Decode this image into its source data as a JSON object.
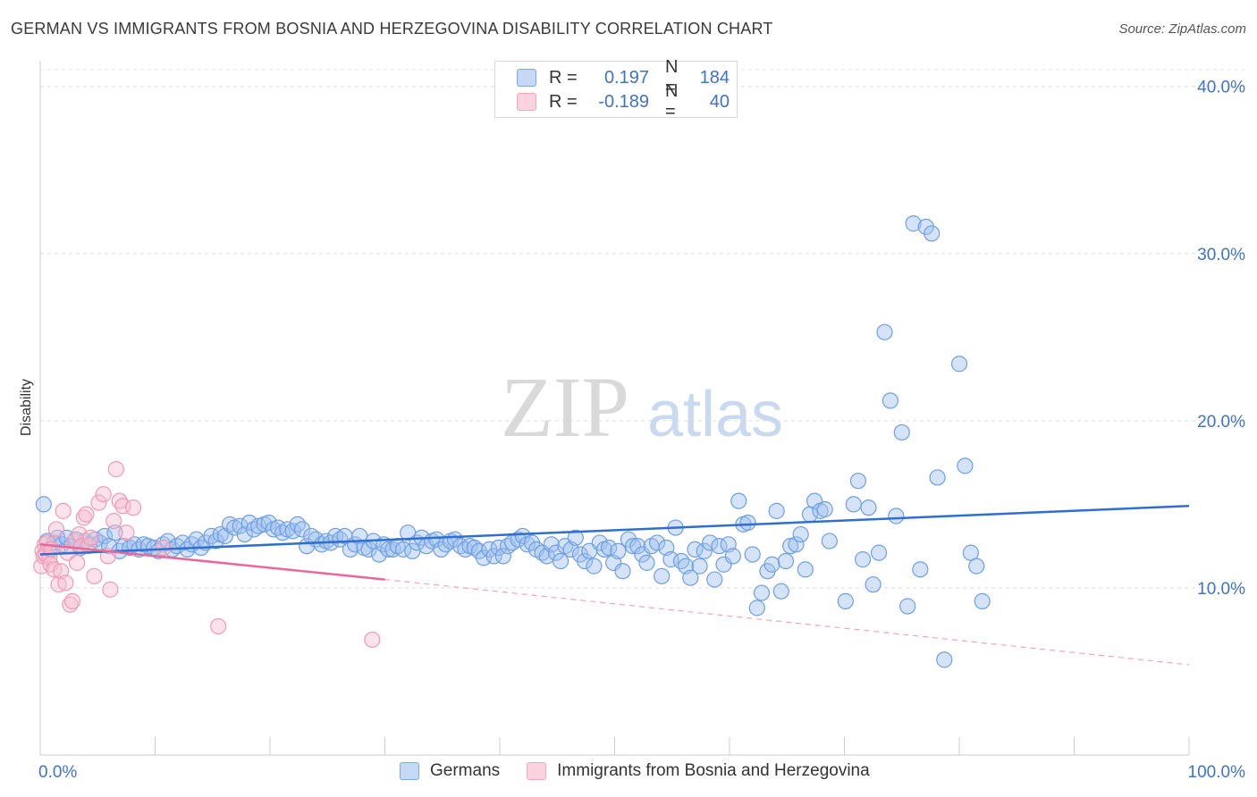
{
  "title": "GERMAN VS IMMIGRANTS FROM BOSNIA AND HERZEGOVINA DISABILITY CORRELATION CHART",
  "source": "Source: ZipAtlas.com",
  "watermark": {
    "zip": "ZIP",
    "atlas": "atlas"
  },
  "legend_top": [
    {
      "r_label": "R =",
      "r_value": "0.197",
      "n_label": "N =",
      "n_value": "184",
      "color": "#7fa9e6"
    },
    {
      "r_label": "R =",
      "r_value": "-0.189",
      "n_label": "N =",
      "n_value": "40",
      "color": "#f2a7bd"
    }
  ],
  "chart_data": {
    "type": "scatter",
    "title": "GERMAN VS IMMIGRANTS FROM BOSNIA AND HERZEGOVINA DISABILITY CORRELATION CHART",
    "xlabel": "",
    "ylabel": "Disability",
    "xlim": [
      0,
      100
    ],
    "ylim": [
      0,
      41
    ],
    "x_tick_labels": [
      "0.0%",
      "100.0%"
    ],
    "y_ticks": [
      10,
      20,
      30,
      40
    ],
    "y_tick_labels": [
      "10.0%",
      "20.0%",
      "30.0%",
      "40.0%"
    ],
    "grid": true,
    "legend_position": "bottom",
    "series": [
      {
        "name": "Germans",
        "color": "#7fa9e6",
        "trend": {
          "x": [
            0,
            100
          ],
          "y": [
            12.0,
            14.9
          ]
        },
        "points": [
          [
            0.3,
            15.0
          ],
          [
            0.6,
            12.8
          ],
          [
            0.8,
            12.3
          ],
          [
            1.2,
            12.7
          ],
          [
            1.5,
            13.0
          ],
          [
            1.9,
            12.6
          ],
          [
            2.3,
            13.0
          ],
          [
            2.7,
            12.5
          ],
          [
            3.1,
            12.9
          ],
          [
            3.5,
            12.4
          ],
          [
            3.9,
            12.8
          ],
          [
            4.3,
            12.6
          ],
          [
            4.8,
            12.9
          ],
          [
            5.2,
            12.7
          ],
          [
            5.6,
            13.1
          ],
          [
            6.0,
            12.5
          ],
          [
            6.5,
            13.3
          ],
          [
            6.9,
            12.2
          ],
          [
            7.3,
            12.5
          ],
          [
            7.8,
            12.4
          ],
          [
            8.2,
            12.6
          ],
          [
            8.6,
            12.3
          ],
          [
            9.0,
            12.6
          ],
          [
            9.4,
            12.5
          ],
          [
            9.9,
            12.4
          ],
          [
            10.3,
            12.2
          ],
          [
            10.7,
            12.6
          ],
          [
            11.1,
            12.8
          ],
          [
            11.5,
            12.3
          ],
          [
            11.9,
            12.5
          ],
          [
            12.4,
            12.7
          ],
          [
            12.8,
            12.3
          ],
          [
            13.2,
            12.6
          ],
          [
            13.6,
            12.9
          ],
          [
            14.0,
            12.4
          ],
          [
            14.4,
            12.7
          ],
          [
            14.9,
            13.1
          ],
          [
            15.3,
            12.8
          ],
          [
            15.7,
            13.2
          ],
          [
            16.1,
            13.1
          ],
          [
            16.5,
            13.8
          ],
          [
            16.9,
            13.6
          ],
          [
            17.4,
            13.7
          ],
          [
            17.8,
            13.2
          ],
          [
            18.2,
            13.9
          ],
          [
            18.6,
            13.5
          ],
          [
            19.0,
            13.7
          ],
          [
            19.5,
            13.8
          ],
          [
            19.9,
            13.9
          ],
          [
            20.3,
            13.5
          ],
          [
            20.7,
            13.6
          ],
          [
            21.1,
            13.3
          ],
          [
            21.5,
            13.5
          ],
          [
            22.0,
            13.4
          ],
          [
            22.4,
            13.8
          ],
          [
            22.8,
            13.5
          ],
          [
            23.2,
            12.5
          ],
          [
            23.6,
            13.1
          ],
          [
            24.0,
            12.9
          ],
          [
            24.5,
            12.6
          ],
          [
            24.9,
            12.8
          ],
          [
            25.3,
            12.7
          ],
          [
            25.7,
            13.1
          ],
          [
            26.1,
            12.9
          ],
          [
            26.5,
            13.1
          ],
          [
            27.0,
            12.3
          ],
          [
            27.4,
            12.6
          ],
          [
            27.8,
            13.1
          ],
          [
            28.2,
            12.4
          ],
          [
            28.6,
            12.3
          ],
          [
            29.0,
            12.8
          ],
          [
            29.5,
            12.0
          ],
          [
            29.9,
            12.6
          ],
          [
            30.3,
            12.3
          ],
          [
            30.7,
            12.3
          ],
          [
            31.1,
            12.5
          ],
          [
            31.6,
            12.3
          ],
          [
            32.0,
            13.3
          ],
          [
            32.4,
            12.2
          ],
          [
            32.8,
            12.7
          ],
          [
            33.2,
            13.0
          ],
          [
            33.6,
            12.5
          ],
          [
            34.1,
            12.8
          ],
          [
            34.5,
            12.9
          ],
          [
            34.9,
            12.3
          ],
          [
            35.3,
            12.6
          ],
          [
            35.7,
            12.8
          ],
          [
            36.1,
            12.9
          ],
          [
            36.6,
            12.5
          ],
          [
            37.0,
            12.3
          ],
          [
            37.4,
            12.5
          ],
          [
            37.8,
            12.4
          ],
          [
            38.2,
            12.2
          ],
          [
            38.6,
            11.8
          ],
          [
            39.1,
            12.3
          ],
          [
            39.5,
            11.9
          ],
          [
            39.9,
            12.4
          ],
          [
            40.3,
            11.9
          ],
          [
            40.7,
            12.5
          ],
          [
            41.1,
            12.7
          ],
          [
            41.6,
            12.9
          ],
          [
            42.0,
            13.1
          ],
          [
            42.4,
            12.6
          ],
          [
            42.8,
            12.7
          ],
          [
            43.2,
            12.3
          ],
          [
            43.7,
            12.1
          ],
          [
            44.1,
            11.9
          ],
          [
            44.5,
            12.6
          ],
          [
            44.9,
            12.1
          ],
          [
            45.3,
            11.6
          ],
          [
            45.7,
            12.5
          ],
          [
            46.2,
            12.3
          ],
          [
            46.6,
            13.0
          ],
          [
            47.0,
            12.0
          ],
          [
            47.4,
            11.6
          ],
          [
            47.8,
            12.2
          ],
          [
            48.2,
            11.3
          ],
          [
            48.7,
            12.7
          ],
          [
            49.1,
            12.3
          ],
          [
            49.5,
            12.4
          ],
          [
            49.9,
            11.5
          ],
          [
            50.3,
            12.2
          ],
          [
            50.7,
            11.0
          ],
          [
            51.2,
            12.9
          ],
          [
            51.6,
            12.5
          ],
          [
            52.0,
            12.5
          ],
          [
            52.4,
            12.0
          ],
          [
            52.8,
            11.5
          ],
          [
            53.2,
            12.5
          ],
          [
            53.7,
            12.7
          ],
          [
            54.1,
            10.7
          ],
          [
            54.5,
            12.4
          ],
          [
            54.9,
            11.7
          ],
          [
            55.3,
            13.6
          ],
          [
            55.8,
            11.6
          ],
          [
            56.2,
            11.3
          ],
          [
            56.6,
            10.6
          ],
          [
            57.0,
            12.3
          ],
          [
            57.4,
            11.3
          ],
          [
            57.8,
            12.2
          ],
          [
            58.3,
            12.7
          ],
          [
            58.7,
            10.5
          ],
          [
            59.1,
            12.5
          ],
          [
            59.5,
            11.4
          ],
          [
            59.9,
            12.6
          ],
          [
            60.3,
            11.9
          ],
          [
            60.8,
            15.2
          ],
          [
            61.2,
            13.8
          ],
          [
            61.6,
            13.9
          ],
          [
            62.0,
            12.0
          ],
          [
            62.4,
            8.8
          ],
          [
            62.8,
            9.7
          ],
          [
            63.3,
            11.0
          ],
          [
            63.7,
            11.4
          ],
          [
            64.1,
            14.6
          ],
          [
            64.5,
            9.8
          ],
          [
            64.9,
            11.6
          ],
          [
            65.3,
            12.5
          ],
          [
            65.8,
            12.6
          ],
          [
            66.2,
            13.2
          ],
          [
            66.6,
            11.1
          ],
          [
            67.0,
            14.4
          ],
          [
            67.4,
            15.2
          ],
          [
            67.9,
            14.6
          ],
          [
            68.3,
            14.7
          ],
          [
            68.7,
            12.8
          ],
          [
            70.1,
            9.2
          ],
          [
            70.8,
            15.0
          ],
          [
            71.2,
            16.4
          ],
          [
            71.6,
            11.7
          ],
          [
            72.1,
            14.8
          ],
          [
            72.5,
            10.2
          ],
          [
            73.0,
            12.1
          ],
          [
            73.5,
            25.3
          ],
          [
            74.0,
            21.2
          ],
          [
            74.5,
            14.3
          ],
          [
            75.0,
            19.3
          ],
          [
            75.5,
            8.9
          ],
          [
            76.0,
            31.8
          ],
          [
            76.6,
            11.1
          ],
          [
            77.1,
            31.6
          ],
          [
            77.6,
            31.2
          ],
          [
            78.1,
            16.6
          ],
          [
            78.7,
            5.7
          ],
          [
            80.0,
            23.4
          ],
          [
            80.5,
            17.3
          ],
          [
            81.0,
            12.1
          ],
          [
            81.5,
            11.3
          ],
          [
            82.0,
            9.2
          ]
        ]
      },
      {
        "name": "Immigrants from Bosnia and Herzegovina",
        "color": "#f2a7bd",
        "trend": {
          "x": [
            0,
            30
          ],
          "y": [
            12.6,
            10.5
          ]
        },
        "trend_extension": {
          "x": [
            30,
            100
          ],
          "y": [
            10.5,
            5.4
          ]
        },
        "points": [
          [
            0.1,
            11.3
          ],
          [
            0.2,
            12.2
          ],
          [
            0.3,
            11.9
          ],
          [
            0.4,
            12.6
          ],
          [
            0.5,
            12.0
          ],
          [
            0.6,
            12.7
          ],
          [
            0.8,
            11.8
          ],
          [
            0.9,
            11.4
          ],
          [
            1.0,
            12.3
          ],
          [
            1.2,
            11.1
          ],
          [
            1.4,
            13.5
          ],
          [
            1.6,
            10.2
          ],
          [
            1.8,
            11.0
          ],
          [
            2.0,
            14.6
          ],
          [
            2.2,
            10.3
          ],
          [
            2.4,
            12.1
          ],
          [
            2.6,
            9.0
          ],
          [
            2.8,
            9.2
          ],
          [
            3.0,
            12.8
          ],
          [
            3.2,
            11.5
          ],
          [
            3.4,
            13.2
          ],
          [
            3.6,
            12.5
          ],
          [
            3.8,
            14.2
          ],
          [
            4.0,
            14.4
          ],
          [
            4.2,
            12.5
          ],
          [
            4.4,
            13.0
          ],
          [
            4.7,
            10.7
          ],
          [
            5.1,
            15.1
          ],
          [
            5.5,
            15.6
          ],
          [
            5.9,
            11.9
          ],
          [
            6.1,
            9.9
          ],
          [
            6.4,
            14.0
          ],
          [
            6.6,
            17.1
          ],
          [
            6.9,
            15.2
          ],
          [
            7.2,
            14.9
          ],
          [
            7.5,
            13.3
          ],
          [
            8.1,
            14.8
          ],
          [
            10.7,
            12.4
          ],
          [
            15.5,
            7.7
          ],
          [
            28.9,
            6.9
          ]
        ]
      }
    ]
  }
}
